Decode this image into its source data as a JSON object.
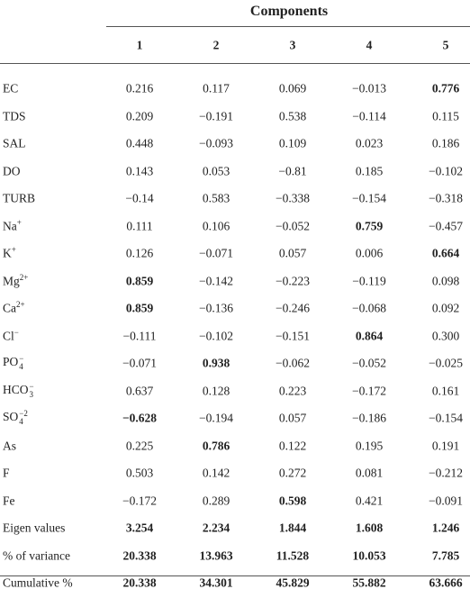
{
  "table": {
    "header": {
      "title": "Components",
      "columns": [
        "1",
        "2",
        "3",
        "4",
        "5"
      ]
    },
    "rows": [
      {
        "label": {
          "base": "EC"
        },
        "values": [
          "0.216",
          "0.117",
          "0.069",
          "−0.013",
          "0.776"
        ],
        "bold_columns": [
          4
        ]
      },
      {
        "label": {
          "base": "TDS"
        },
        "values": [
          "0.209",
          "−0.191",
          "0.538",
          "−0.114",
          "0.115"
        ],
        "bold_columns": []
      },
      {
        "label": {
          "base": "SAL"
        },
        "values": [
          "0.448",
          "−0.093",
          "0.109",
          "0.023",
          "0.186"
        ],
        "bold_columns": []
      },
      {
        "label": {
          "base": "DO"
        },
        "values": [
          "0.143",
          "0.053",
          "−0.81",
          "0.185",
          "−0.102"
        ],
        "bold_columns": []
      },
      {
        "label": {
          "base": "TURB"
        },
        "values": [
          "−0.14",
          "0.583",
          "−0.338",
          "−0.154",
          "−0.318"
        ],
        "bold_columns": []
      },
      {
        "label": {
          "base": "Na",
          "sup": "+"
        },
        "values": [
          "0.111",
          "0.106",
          "−0.052",
          "0.759",
          "−0.457"
        ],
        "bold_columns": [
          3
        ]
      },
      {
        "label": {
          "base": "K",
          "sup": "+"
        },
        "values": [
          "0.126",
          "−0.071",
          "0.057",
          "0.006",
          "0.664"
        ],
        "bold_columns": [
          4
        ]
      },
      {
        "label": {
          "base": "Mg",
          "sup": "2+"
        },
        "values": [
          "0.859",
          "−0.142",
          "−0.223",
          "−0.119",
          "0.098"
        ],
        "bold_columns": [
          0
        ]
      },
      {
        "label": {
          "base": "Ca",
          "sup": "2+"
        },
        "values": [
          "0.859",
          "−0.136",
          "−0.246",
          "−0.068",
          "0.092"
        ],
        "bold_columns": [
          0
        ]
      },
      {
        "label": {
          "base": "Cl",
          "sup": "−"
        },
        "values": [
          "−0.111",
          "−0.102",
          "−0.151",
          "0.864",
          "0.300"
        ],
        "bold_columns": [
          3
        ]
      },
      {
        "label": {
          "base": "PO",
          "sub": "4",
          "sup": "−"
        },
        "values": [
          "−0.071",
          "0.938",
          "−0.062",
          "−0.052",
          "−0.025"
        ],
        "bold_columns": [
          1
        ]
      },
      {
        "label": {
          "base": "HCO",
          "sub": "3",
          "sup": "−"
        },
        "values": [
          "0.637",
          "0.128",
          "0.223",
          "−0.172",
          "0.161"
        ],
        "bold_columns": []
      },
      {
        "label": {
          "base": "SO",
          "sub": "4",
          "sup": "−2"
        },
        "values": [
          "−0.628",
          "−0.194",
          "0.057",
          "−0.186",
          "−0.154"
        ],
        "bold_columns": [
          0
        ]
      },
      {
        "label": {
          "base": "As"
        },
        "values": [
          "0.225",
          "0.786",
          "0.122",
          "0.195",
          "0.191"
        ],
        "bold_columns": [
          1
        ]
      },
      {
        "label": {
          "base": "F"
        },
        "values": [
          "0.503",
          "0.142",
          "0.272",
          "0.081",
          "−0.212"
        ],
        "bold_columns": []
      },
      {
        "label": {
          "base": "Fe"
        },
        "values": [
          "−0.172",
          "0.289",
          "0.598",
          "0.421",
          "−0.091"
        ],
        "bold_columns": [
          2
        ]
      },
      {
        "label": {
          "base": "Eigen values"
        },
        "values": [
          "3.254",
          "2.234",
          "1.844",
          "1.608",
          "1.246"
        ],
        "bold_columns": [
          0,
          1,
          2,
          3,
          4
        ]
      },
      {
        "label": {
          "base": "% of variance"
        },
        "values": [
          "20.338",
          "13.963",
          "11.528",
          "10.053",
          "7.785"
        ],
        "bold_columns": [
          0,
          1,
          2,
          3,
          4
        ]
      },
      {
        "label": {
          "base": "Cumulative %"
        },
        "values": [
          "20.338",
          "34.301",
          "45.829",
          "55.882",
          "63.666"
        ],
        "bold_columns": [
          0,
          1,
          2,
          3,
          4
        ]
      }
    ]
  }
}
